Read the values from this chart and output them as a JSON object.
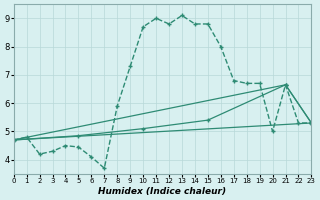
{
  "xlabel": "Humidex (Indice chaleur)",
  "bg_color": "#d8f0f0",
  "line_color": "#2e8b74",
  "xlim": [
    0,
    23
  ],
  "ylim": [
    3.5,
    9.5
  ],
  "xticks": [
    0,
    1,
    2,
    3,
    4,
    5,
    6,
    7,
    8,
    9,
    10,
    11,
    12,
    13,
    14,
    15,
    16,
    17,
    18,
    19,
    20,
    21,
    22,
    23
  ],
  "yticks": [
    4,
    5,
    6,
    7,
    8,
    9
  ],
  "series1_x": [
    0,
    1,
    2,
    3,
    4,
    5,
    6,
    7,
    8,
    9,
    10,
    11,
    12,
    13,
    14,
    15,
    16,
    17,
    18,
    19,
    20,
    21,
    22,
    23
  ],
  "series1_y": [
    4.7,
    4.8,
    4.2,
    4.3,
    4.5,
    4.45,
    4.1,
    3.7,
    5.9,
    7.3,
    8.7,
    9.0,
    8.8,
    9.1,
    8.8,
    8.8,
    8.0,
    6.8,
    6.7,
    6.7,
    5.0,
    6.65,
    5.3,
    5.3
  ],
  "series2_x": [
    0,
    23
  ],
  "series2_y": [
    4.7,
    5.3
  ],
  "series3_x": [
    0,
    5,
    10,
    15,
    21,
    23
  ],
  "series3_y": [
    4.7,
    4.85,
    5.1,
    5.4,
    6.65,
    5.3
  ],
  "series4_x": [
    0,
    21,
    23
  ],
  "series4_y": [
    4.7,
    6.65,
    5.3
  ]
}
